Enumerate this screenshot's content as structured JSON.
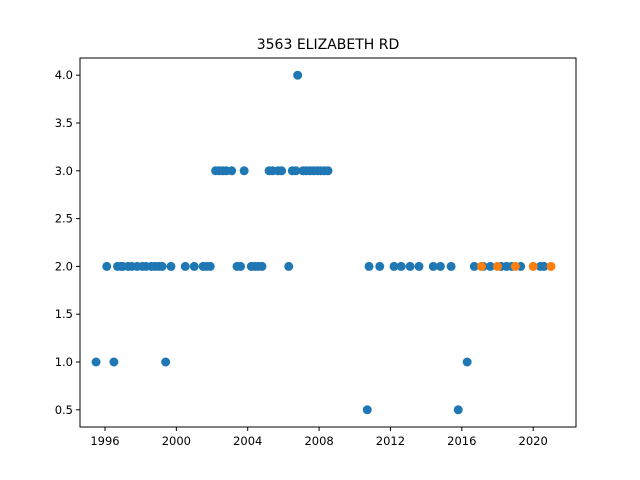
{
  "chart_data": {
    "type": "scatter",
    "title": "3563 ELIZABETH RD",
    "xlabel": "",
    "ylabel": "",
    "xlim": [
      1994.6,
      2022.4
    ],
    "ylim": [
      0.32,
      4.18
    ],
    "x_ticks": [
      1996,
      2000,
      2004,
      2008,
      2012,
      2016,
      2020
    ],
    "x_tick_labels": [
      "1996",
      "2000",
      "2004",
      "2008",
      "2012",
      "2016",
      "2020"
    ],
    "y_ticks": [
      0.5,
      1.0,
      1.5,
      2.0,
      2.5,
      3.0,
      3.5,
      4.0
    ],
    "y_tick_labels": [
      "0.5",
      "1.0",
      "1.5",
      "2.0",
      "2.5",
      "3.0",
      "3.5",
      "4.0"
    ],
    "grid": false,
    "legend": "none",
    "series": [
      {
        "color": "#1f77b4",
        "points": [
          [
            1995.5,
            1.0
          ],
          [
            1996.1,
            2.0
          ],
          [
            1996.5,
            1.0
          ],
          [
            1996.7,
            2.0
          ],
          [
            1996.9,
            2.0
          ],
          [
            1997.0,
            2.0
          ],
          [
            1997.3,
            2.0
          ],
          [
            1997.5,
            2.0
          ],
          [
            1997.8,
            2.0
          ],
          [
            1998.1,
            2.0
          ],
          [
            1998.3,
            2.0
          ],
          [
            1998.6,
            2.0
          ],
          [
            1998.8,
            2.0
          ],
          [
            1999.0,
            2.0
          ],
          [
            1999.2,
            2.0
          ],
          [
            1999.4,
            1.0
          ],
          [
            1999.7,
            2.0
          ],
          [
            2000.5,
            2.0
          ],
          [
            2001.0,
            2.0
          ],
          [
            2001.5,
            2.0
          ],
          [
            2001.7,
            2.0
          ],
          [
            2001.9,
            2.0
          ],
          [
            2002.2,
            3.0
          ],
          [
            2002.4,
            3.0
          ],
          [
            2002.6,
            3.0
          ],
          [
            2002.8,
            3.0
          ],
          [
            2003.1,
            3.0
          ],
          [
            2003.4,
            2.0
          ],
          [
            2003.6,
            2.0
          ],
          [
            2003.8,
            3.0
          ],
          [
            2004.2,
            2.0
          ],
          [
            2004.4,
            2.0
          ],
          [
            2004.6,
            2.0
          ],
          [
            2004.8,
            2.0
          ],
          [
            2005.2,
            3.0
          ],
          [
            2005.4,
            3.0
          ],
          [
            2005.7,
            3.0
          ],
          [
            2005.9,
            3.0
          ],
          [
            2006.3,
            2.0
          ],
          [
            2006.5,
            3.0
          ],
          [
            2006.7,
            3.0
          ],
          [
            2006.8,
            4.0
          ],
          [
            2007.1,
            3.0
          ],
          [
            2007.3,
            3.0
          ],
          [
            2007.5,
            3.0
          ],
          [
            2007.7,
            3.0
          ],
          [
            2007.9,
            3.0
          ],
          [
            2008.1,
            3.0
          ],
          [
            2008.3,
            3.0
          ],
          [
            2008.5,
            3.0
          ],
          [
            2010.7,
            0.5
          ],
          [
            2010.8,
            2.0
          ],
          [
            2011.4,
            2.0
          ],
          [
            2012.2,
            2.0
          ],
          [
            2012.6,
            2.0
          ],
          [
            2013.1,
            2.0
          ],
          [
            2013.6,
            2.0
          ],
          [
            2014.4,
            2.0
          ],
          [
            2014.8,
            2.0
          ],
          [
            2015.4,
            2.0
          ],
          [
            2015.8,
            0.5
          ],
          [
            2016.3,
            1.0
          ],
          [
            2016.7,
            2.0
          ],
          [
            2017.2,
            2.0
          ],
          [
            2017.6,
            2.0
          ],
          [
            2018.2,
            2.0
          ],
          [
            2018.5,
            2.0
          ],
          [
            2018.8,
            2.0
          ],
          [
            2019.3,
            2.0
          ],
          [
            2020.4,
            2.0
          ],
          [
            2020.6,
            2.0
          ]
        ]
      },
      {
        "color": "#ff7f0e",
        "points": [
          [
            2017.1,
            2.0
          ],
          [
            2018.0,
            2.0
          ],
          [
            2019.0,
            2.0
          ],
          [
            2020.0,
            2.0
          ],
          [
            2021.0,
            2.0
          ]
        ]
      }
    ]
  }
}
